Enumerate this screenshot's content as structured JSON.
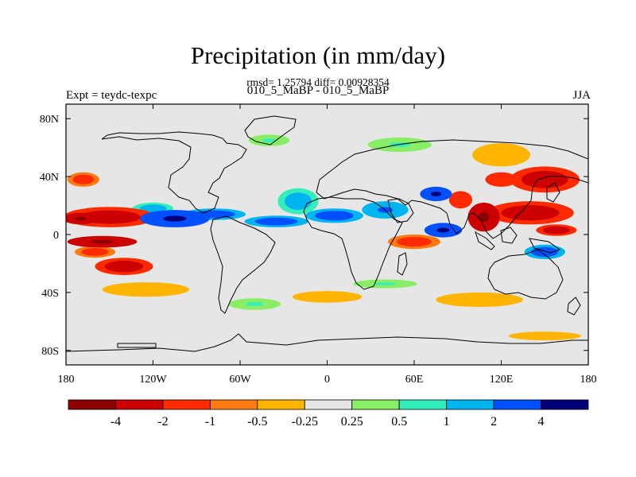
{
  "chart_data": {
    "type": "heatmap",
    "title": "Precipitation (in mm/day)",
    "stats_line": "rmsd= 1.25794  diff= 0.00928354",
    "subtitle": "010_5_MaBP - 010_5_MaBP",
    "left_label": "Expt = teydc-texpc",
    "right_label": "JJA",
    "projection": "cylindrical equidistant",
    "xlim": [
      -180,
      180
    ],
    "ylim": [
      -90,
      90
    ],
    "x_ticks": [
      {
        "value": -180,
        "label": "180"
      },
      {
        "value": -120,
        "label": "120W"
      },
      {
        "value": -60,
        "label": "60W"
      },
      {
        "value": 0,
        "label": "0"
      },
      {
        "value": 60,
        "label": "60E"
      },
      {
        "value": 120,
        "label": "120E"
      },
      {
        "value": 180,
        "label": "180"
      }
    ],
    "y_ticks": [
      {
        "value": 80,
        "label": "80N"
      },
      {
        "value": 40,
        "label": "40N"
      },
      {
        "value": 0,
        "label": "0"
      },
      {
        "value": -40,
        "label": "40S"
      },
      {
        "value": -80,
        "label": "80S"
      }
    ],
    "colorbar": {
      "colors": [
        "#8b0000",
        "#cc0000",
        "#ff2a00",
        "#ff7a10",
        "#ffb400",
        "#e6e6e6",
        "#88ee66",
        "#33eebb",
        "#00b4f0",
        "#0050ff",
        "#00007a"
      ],
      "labels": [
        "-4",
        "-2",
        "-1",
        "-0.5",
        "-0.25",
        "0.25",
        "0.5",
        "1",
        "2",
        "4"
      ]
    },
    "anomalies": [
      {
        "lon": -150,
        "lat": 12,
        "rlon": 32,
        "rlat": 7,
        "value": -2.5
      },
      {
        "lon": -170,
        "lat": 11,
        "rlon": 12,
        "rlat": 4,
        "value": -4.5
      },
      {
        "lon": -105,
        "lat": 11,
        "rlon": 24,
        "rlat": 6,
        "value": 4.5
      },
      {
        "lon": -78,
        "lat": 14,
        "rlon": 22,
        "rlat": 4,
        "value": 2.5
      },
      {
        "lon": -120,
        "lat": 18,
        "rlon": 14,
        "rlat": 4,
        "value": 1.5
      },
      {
        "lon": -35,
        "lat": 9,
        "rlon": 22,
        "rlat": 4,
        "value": 2.5
      },
      {
        "lon": 5,
        "lat": 13,
        "rlon": 20,
        "rlat": 5,
        "value": 3
      },
      {
        "lon": -20,
        "lat": 23,
        "rlon": 14,
        "rlat": 9,
        "value": 1.5
      },
      {
        "lon": 40,
        "lat": 17,
        "rlon": 16,
        "rlat": 6,
        "value": 2
      },
      {
        "lon": 75,
        "lat": 28,
        "rlon": 11,
        "rlat": 5,
        "value": 4.5
      },
      {
        "lon": 80,
        "lat": 3,
        "rlon": 13,
        "rlat": 5,
        "value": 4.5
      },
      {
        "lon": 108,
        "lat": 12,
        "rlon": 11,
        "rlat": 10,
        "value": -4.5
      },
      {
        "lon": 92,
        "lat": 24,
        "rlon": 8,
        "rlat": 6,
        "value": -2
      },
      {
        "lon": 140,
        "lat": 15,
        "rlon": 30,
        "rlat": 8,
        "value": -2.5
      },
      {
        "lon": 158,
        "lat": 3,
        "rlon": 14,
        "rlat": 4,
        "value": -3
      },
      {
        "lon": 150,
        "lat": -12,
        "rlon": 14,
        "rlat": 5,
        "value": 3
      },
      {
        "lon": -155,
        "lat": -5,
        "rlon": 24,
        "rlat": 4,
        "value": -4.5
      },
      {
        "lon": -140,
        "lat": -22,
        "rlon": 20,
        "rlat": 6,
        "value": -2.5
      },
      {
        "lon": -160,
        "lat": -12,
        "rlon": 14,
        "rlat": 4,
        "value": -1.5
      },
      {
        "lon": 60,
        "lat": -5,
        "rlon": 18,
        "rlat": 5,
        "value": -1.5
      },
      {
        "lon": 150,
        "lat": 38,
        "rlon": 24,
        "rlat": 9,
        "value": -3
      },
      {
        "lon": 120,
        "lat": 38,
        "rlon": 11,
        "rlat": 5,
        "value": -2
      },
      {
        "lon": 120,
        "lat": 55,
        "rlon": 20,
        "rlat": 8,
        "value": -0.5
      },
      {
        "lon": -168,
        "lat": 38,
        "rlon": 11,
        "rlat": 5,
        "value": -1.5
      },
      {
        "lon": -125,
        "lat": -38,
        "rlon": 30,
        "rlat": 5,
        "value": -0.5
      },
      {
        "lon": 0,
        "lat": -43,
        "rlon": 24,
        "rlat": 4,
        "value": -0.5
      },
      {
        "lon": 105,
        "lat": -45,
        "rlon": 30,
        "rlat": 5,
        "value": -0.5
      },
      {
        "lon": 40,
        "lat": -34,
        "rlon": 22,
        "rlat": 3,
        "value": 0.6
      },
      {
        "lon": -50,
        "lat": -48,
        "rlon": 18,
        "rlat": 4,
        "value": 0.6
      },
      {
        "lon": 50,
        "lat": 62,
        "rlon": 22,
        "rlat": 5,
        "value": 0.6
      },
      {
        "lon": -40,
        "lat": 65,
        "rlon": 14,
        "rlat": 4,
        "value": 0.6
      },
      {
        "lon": 150,
        "lat": -70,
        "rlon": 25,
        "rlat": 3,
        "value": -0.5
      }
    ]
  }
}
